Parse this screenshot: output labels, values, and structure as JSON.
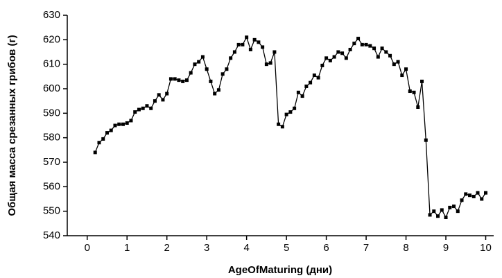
{
  "chart_data": {
    "type": "line",
    "xlabel": "AgeOfMaturing (дни)",
    "ylabel": "Общая масса срезанных грибов (г)",
    "xlim": [
      -0.5,
      10.2
    ],
    "ylim": [
      540,
      630
    ],
    "xticks": [
      0,
      1,
      2,
      3,
      4,
      5,
      6,
      7,
      8,
      9,
      10
    ],
    "yticks": [
      540,
      550,
      560,
      570,
      580,
      590,
      600,
      610,
      620,
      630
    ],
    "series": [
      {
        "color": "#000000",
        "x": [
          0.2,
          0.3,
          0.4,
          0.5,
          0.6,
          0.7,
          0.8,
          0.9,
          1.0,
          1.1,
          1.2,
          1.3,
          1.4,
          1.5,
          1.6,
          1.7,
          1.8,
          1.9,
          2.0,
          2.1,
          2.2,
          2.3,
          2.4,
          2.5,
          2.6,
          2.7,
          2.8,
          2.9,
          3.0,
          3.1,
          3.2,
          3.3,
          3.4,
          3.5,
          3.6,
          3.7,
          3.8,
          3.9,
          4.0,
          4.1,
          4.2,
          4.3,
          4.4,
          4.5,
          4.6,
          4.7,
          4.8,
          4.9,
          5.0,
          5.1,
          5.2,
          5.3,
          5.4,
          5.5,
          5.6,
          5.7,
          5.8,
          5.9,
          6.0,
          6.1,
          6.2,
          6.3,
          6.4,
          6.5,
          6.6,
          6.7,
          6.8,
          6.9,
          7.0,
          7.1,
          7.2,
          7.3,
          7.4,
          7.5,
          7.6,
          7.7,
          7.8,
          7.9,
          8.0,
          8.1,
          8.2,
          8.3,
          8.4,
          8.5,
          8.6,
          8.7,
          8.8,
          8.9,
          9.0,
          9.1,
          9.2,
          9.3,
          9.4,
          9.5,
          9.6,
          9.7,
          9.8,
          9.9,
          10.0
        ],
        "values": [
          574,
          578,
          579.5,
          582,
          583,
          585,
          585.5,
          585.5,
          586,
          587,
          590.5,
          591.5,
          592,
          593,
          592,
          595,
          597.5,
          595.5,
          598,
          604,
          604,
          603.5,
          603,
          603.5,
          606.5,
          610,
          611,
          613,
          608,
          603,
          598,
          599.5,
          606,
          608,
          612.5,
          615,
          618,
          618,
          621,
          616,
          620,
          619,
          617,
          610,
          610.5,
          615,
          585.5,
          584.5,
          589.5,
          590.5,
          592,
          598.5,
          597,
          601,
          602.5,
          605.5,
          604.5,
          609.5,
          612.5,
          611.5,
          613,
          615,
          614.5,
          612.5,
          616,
          618.5,
          620.5,
          618,
          618,
          617.5,
          616.5,
          613,
          616.5,
          615,
          613.5,
          610,
          611,
          605.5,
          608,
          599,
          598.5,
          592.5,
          603,
          579,
          548.5,
          550,
          548,
          550.5,
          547.5,
          551.5,
          552,
          550,
          554.5,
          557,
          556.5,
          556,
          557.5,
          555,
          557.5
        ]
      }
    ]
  }
}
